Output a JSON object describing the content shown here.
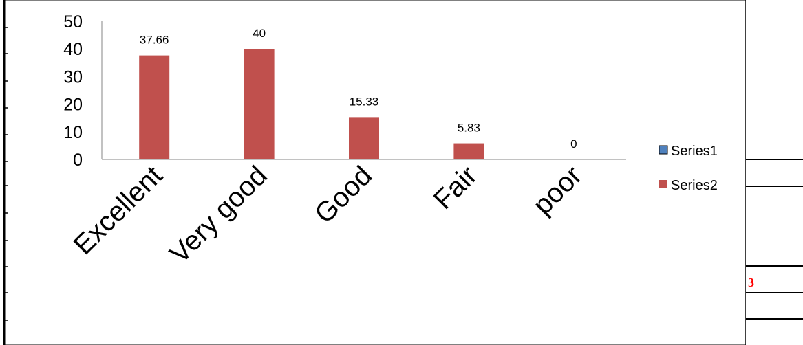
{
  "chart_data": {
    "type": "bar",
    "categories": [
      "Excellent",
      "Very good",
      "Good",
      "Fair",
      "poor"
    ],
    "series": [
      {
        "name": "Series1",
        "values": [
          null,
          null,
          null,
          null,
          null
        ],
        "color": "#4F81BD"
      },
      {
        "name": "Series2",
        "values": [
          37.66,
          40,
          15.33,
          5.83,
          0
        ],
        "color": "#C0504D"
      }
    ],
    "data_labels": [
      "37.66",
      "40",
      "15.33",
      "5.83",
      "0"
    ],
    "yticks": [
      "0",
      "10",
      "20",
      "30",
      "40",
      "50"
    ],
    "ylim": [
      0,
      50
    ],
    "grid": false,
    "legend_position": "right"
  },
  "page_marker": "3"
}
